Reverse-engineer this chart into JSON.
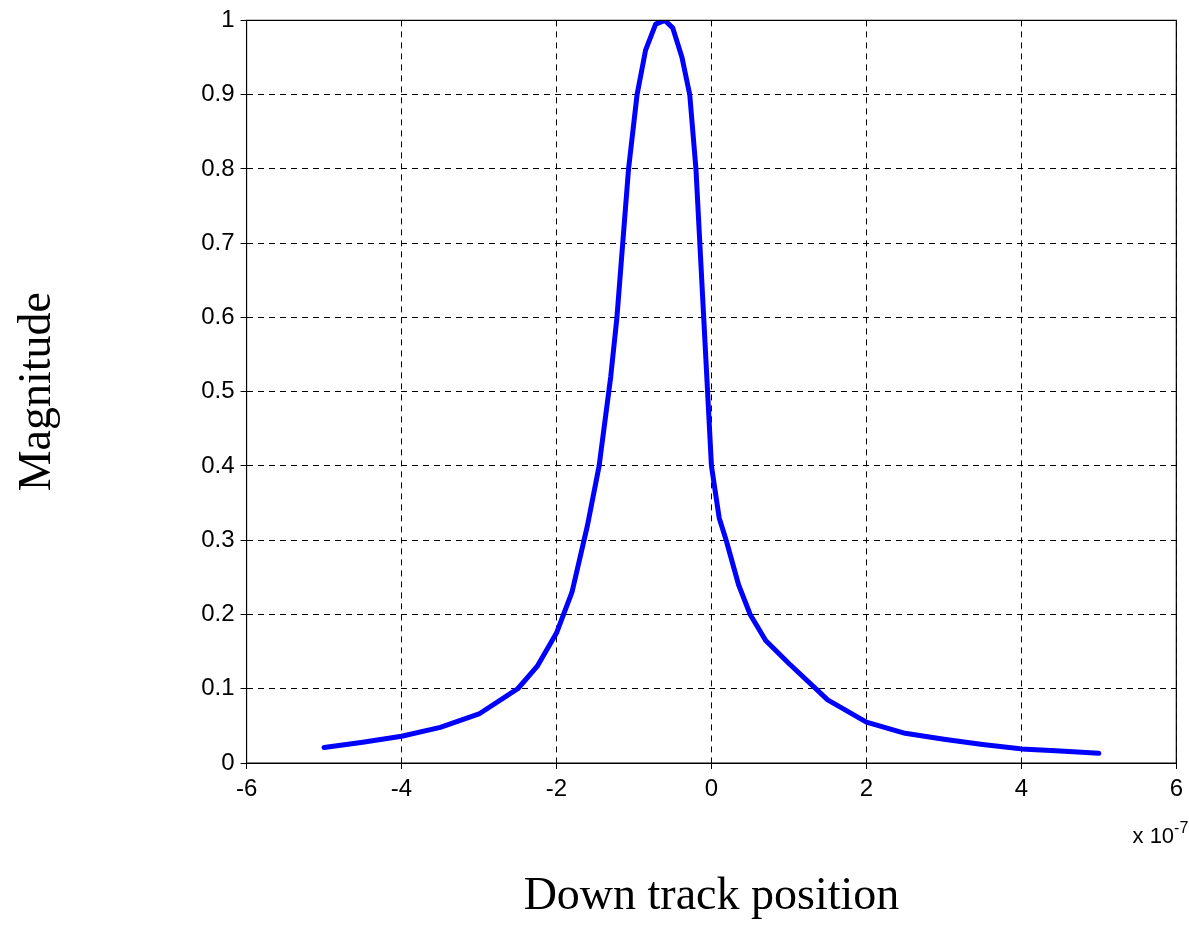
{
  "chart_data": {
    "type": "line",
    "xlabel": "Down track position",
    "ylabel": "Magnitude",
    "annotations": [
      "x 10$^{-7}$"
    ],
    "xlim": [
      -6,
      6
    ],
    "xticks": [
      -6,
      -4,
      -2,
      0,
      2,
      4,
      6
    ],
    "ylim": [
      0,
      1
    ],
    "yticks": [
      0,
      0.1,
      0.2,
      0.3,
      0.4,
      0.5,
      0.6,
      0.7,
      0.8,
      0.9,
      1
    ],
    "grid": true,
    "legend": false,
    "marker": "none",
    "line_style": "solid",
    "series": [
      {
        "color": "#0000ff",
        "x": [
          -5,
          -4.5,
          -4,
          -3.5,
          -3,
          -2.5,
          -2.25,
          -2,
          -1.8,
          -1.6,
          -1.45,
          -1.3,
          -1.22,
          -1.07,
          -0.96,
          -0.85,
          -0.72,
          -0.6,
          -0.5,
          -0.38,
          -0.28,
          -0.2,
          -0.1,
          -0.05,
          0,
          0.1,
          0.19,
          0.35,
          0.5,
          0.7,
          1,
          1.5,
          2,
          2.5,
          3,
          3.5,
          4,
          4.5,
          5
        ],
        "values": [
          0.021,
          0.028,
          0.036,
          0.048,
          0.066,
          0.1,
          0.13,
          0.175,
          0.23,
          0.32,
          0.4,
          0.52,
          0.6,
          0.8,
          0.9,
          0.96,
          0.995,
          1,
          0.99,
          0.95,
          0.9,
          0.8,
          0.6,
          0.5,
          0.4,
          0.33,
          0.3,
          0.24,
          0.2,
          0.165,
          0.134,
          0.085,
          0.055,
          0.04,
          0.032,
          0.025,
          0.019,
          0.016,
          0.013
        ]
      }
    ]
  }
}
